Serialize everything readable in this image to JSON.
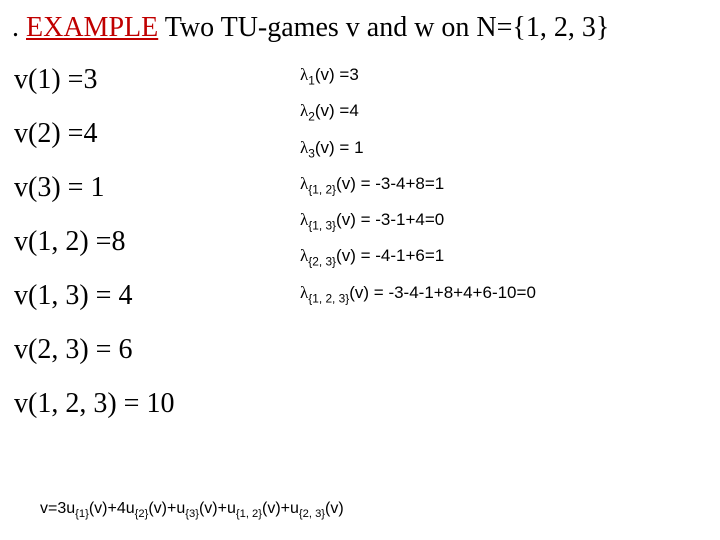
{
  "title": {
    "dot": ".",
    "example": "EXAMPLE",
    "rest": " Two TU-games v and w on N={1, 2, 3}"
  },
  "left": [
    "v(1) =3",
    "v(2) =4",
    "v(3) = 1",
    "v(1, 2) =8",
    "v(1, 3) = 4",
    "v(2, 3) = 6",
    "v(1, 2, 3) = 10"
  ],
  "right": [
    {
      "sub": "1",
      "tail": "(v) =3"
    },
    {
      "sub": "2",
      "tail": "(v) =4"
    },
    {
      "sub": "3",
      "tail": "(v) = 1"
    },
    {
      "sub": "{1, 2}",
      "tail": "(v) = -3-4+8=1"
    },
    {
      "sub": "{1, 3}",
      "tail": "(v) = -3-1+4=0"
    },
    {
      "sub": "{2, 3}",
      "tail": "(v) = -4-1+6=1"
    },
    {
      "sub": "{1, 2, 3}",
      "tail": "(v) = -3-4-1+8+4+6-10=0"
    }
  ],
  "bottom": {
    "parts": [
      {
        "t": "v=3u",
        "s": "{1}"
      },
      {
        "t": "(v)+4u",
        "s": "{2}"
      },
      {
        "t": "(v)+u",
        "s": "{3}"
      },
      {
        "t": "(v)+u",
        "s": "{1, 2}"
      },
      {
        "t": "(v)+u",
        "s": "{2, 3}"
      },
      {
        "t": "(v)",
        "s": ""
      }
    ]
  },
  "colors": {
    "example": "#c00000",
    "text": "#000000",
    "background": "#ffffff"
  },
  "fonts": {
    "title_size": 28,
    "left_size": 28,
    "right_size": 17,
    "bottom_size": 16
  }
}
